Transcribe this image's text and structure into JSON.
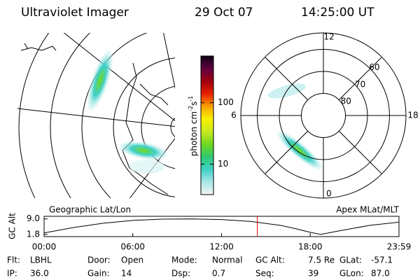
{
  "header": {
    "title": "Ultraviolet Imager",
    "date": "29 Oct 07",
    "time": "14:25:00 UT"
  },
  "maps": {
    "left_label": "Geographic Lat/Lon",
    "right_label": "Apex MLat/MLT",
    "mlt_labels": [
      12,
      18,
      6,
      0
    ],
    "lat_labels": [
      60,
      70,
      80
    ]
  },
  "colorbar": {
    "unit": "photon cm",
    "exp1": "-2",
    "unit2": "s",
    "exp2": "-1",
    "log": true,
    "ylim": [
      3.2,
      575
    ],
    "yticks": [
      10,
      100
    ],
    "colors": [
      "#f4f4f4",
      "#a8e8e8",
      "#40d0c8",
      "#30c870",
      "#70d820",
      "#c8e820",
      "#f8f000",
      "#f8a000",
      "#e82000",
      "#a00010",
      "#600040",
      "#100018"
    ]
  },
  "chart_data": {
    "type": "line",
    "ylabel": "GC Alt",
    "x": [
      0,
      2,
      4,
      6,
      8,
      10,
      12,
      14,
      16,
      17,
      18,
      18.7,
      20,
      22,
      24
    ],
    "values": [
      2.5,
      5.0,
      7.0,
      8.3,
      8.9,
      9.0,
      8.7,
      7.8,
      6.0,
      4.5,
      2.8,
      1.8,
      3.5,
      6.0,
      7.5
    ],
    "color": "#000000",
    "marker": 14.42,
    "marker_color": "#e00000",
    "xlim": [
      0,
      24
    ],
    "ylim": [
      0.8,
      10.2
    ],
    "xticks": [
      {
        "value": 0,
        "label": "00:00"
      },
      {
        "value": 6,
        "label": "06:00"
      },
      {
        "value": 12,
        "label": "12:00"
      },
      {
        "value": 18,
        "label": "18:00"
      },
      {
        "value": 24,
        "label": "23:59"
      }
    ],
    "yticks": [
      1.8,
      {
        "value": 9,
        "label": "9.0"
      }
    ]
  },
  "footer": [
    [
      "Flt:",
      "LBHL"
    ],
    [
      "IP:",
      "36.0"
    ],
    [
      "Door:",
      "Open"
    ],
    [
      "Gain:",
      "14"
    ],
    [
      "Mode:",
      "Normal"
    ],
    [
      "Dsp:",
      "0.7"
    ],
    [
      "GC Alt:",
      "7.5 Re"
    ],
    [
      "Seq:",
      "39"
    ],
    [
      "GLat:",
      "-57.1"
    ],
    [
      "GLon:",
      "87.0"
    ]
  ]
}
